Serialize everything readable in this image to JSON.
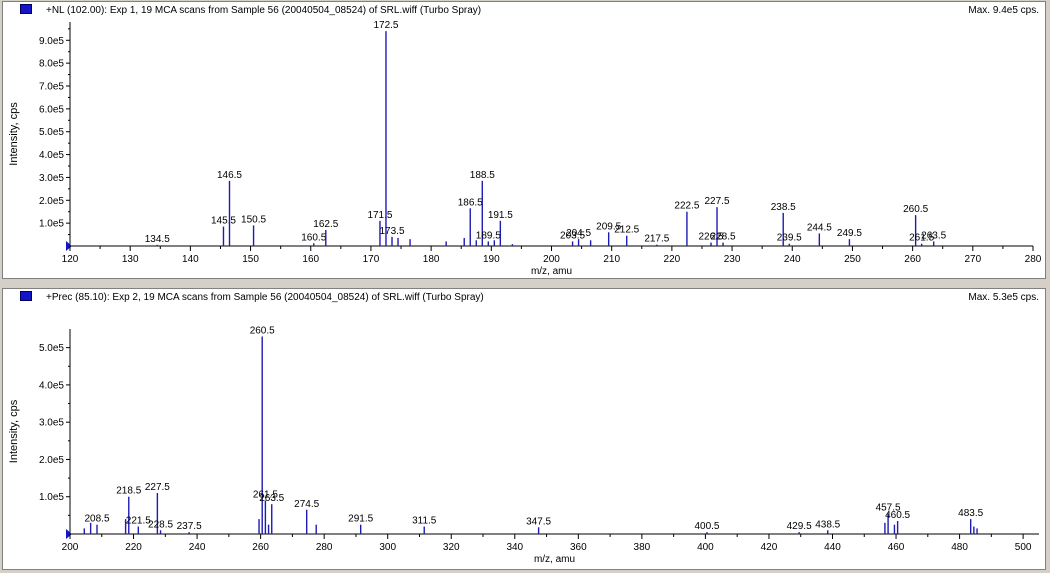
{
  "panels": [
    {
      "header": {
        "title": "+NL (102.00): Exp 1, 19 MCA scans from Sample 56 (20040504_08524) of SRL.wiff (Turbo Spray)",
        "max": "Max. 9.4e5 cps."
      }
    },
    {
      "header": {
        "title": "+Prec (85.10): Exp 2, 19 MCA scans from Sample 56 (20040504_08524) of SRL.wiff (Turbo Spray)",
        "max": "Max. 5.3e5 cps."
      }
    }
  ],
  "colors": {
    "peak": "#1c1cb4",
    "axis": "#000000",
    "panel_bg": "#ffffff",
    "marker": "#1414c8"
  },
  "chart_data": [
    {
      "type": "bar",
      "xlabel": "m/z, amu",
      "ylabel": "Intensity, cps",
      "xlim": [
        120,
        280
      ],
      "ylim": [
        0,
        980000
      ],
      "x_ticks": [
        120,
        130,
        140,
        150,
        160,
        170,
        180,
        190,
        200,
        210,
        220,
        230,
        240,
        250,
        260,
        270,
        280
      ],
      "y_ticks": [
        {
          "value": 100000,
          "label": "1.0e5"
        },
        {
          "value": 200000,
          "label": "2.0e5"
        },
        {
          "value": 300000,
          "label": "3.0e5"
        },
        {
          "value": 400000,
          "label": "4.0e5"
        },
        {
          "value": 500000,
          "label": "5.0e5"
        },
        {
          "value": 600000,
          "label": "6.0e5"
        },
        {
          "value": 700000,
          "label": "7.0e5"
        },
        {
          "value": 800000,
          "label": "8.0e5"
        },
        {
          "value": 900000,
          "label": "9.0e5"
        }
      ],
      "peaks": [
        {
          "x": 134.5,
          "y": 5000,
          "label": "134.5"
        },
        {
          "x": 145.5,
          "y": 85000,
          "label": "145.5"
        },
        {
          "x": 146.5,
          "y": 285000,
          "label": "146.5"
        },
        {
          "x": 150.5,
          "y": 90000,
          "label": "150.5"
        },
        {
          "x": 160.5,
          "y": 12000,
          "label": "160.5"
        },
        {
          "x": 162.5,
          "y": 70000,
          "label": "162.5"
        },
        {
          "x": 171.5,
          "y": 110000,
          "label": "171.5"
        },
        {
          "x": 172.5,
          "y": 940000,
          "label": "172.5"
        },
        {
          "x": 173.5,
          "y": 40000,
          "label": "173.5"
        },
        {
          "x": 174.5,
          "y": 35000
        },
        {
          "x": 176.5,
          "y": 30000
        },
        {
          "x": 182.5,
          "y": 20000
        },
        {
          "x": 185.5,
          "y": 35000
        },
        {
          "x": 186.5,
          "y": 165000,
          "label": "186.5"
        },
        {
          "x": 187.5,
          "y": 25000
        },
        {
          "x": 188.5,
          "y": 285000,
          "label": "188.5"
        },
        {
          "x": 189.5,
          "y": 20000,
          "label": "189.5"
        },
        {
          "x": 190.5,
          "y": 25000
        },
        {
          "x": 191.5,
          "y": 110000,
          "label": "191.5"
        },
        {
          "x": 193.5,
          "y": 8000
        },
        {
          "x": 203.5,
          "y": 20000,
          "label": "203.5"
        },
        {
          "x": 204.5,
          "y": 30000,
          "label": "204.5"
        },
        {
          "x": 206.5,
          "y": 25000
        },
        {
          "x": 209.5,
          "y": 60000,
          "label": "209.5"
        },
        {
          "x": 212.5,
          "y": 45000,
          "label": "212.5"
        },
        {
          "x": 217.5,
          "y": 6000,
          "label": "217.5"
        },
        {
          "x": 222.5,
          "y": 150000,
          "label": "222.5"
        },
        {
          "x": 226.5,
          "y": 15000,
          "label": "226.5"
        },
        {
          "x": 227.5,
          "y": 170000,
          "label": "227.5"
        },
        {
          "x": 228.5,
          "y": 15000,
          "label": "228.5"
        },
        {
          "x": 238.5,
          "y": 145000,
          "label": "238.5"
        },
        {
          "x": 239.5,
          "y": 10000,
          "label": "239.5"
        },
        {
          "x": 244.5,
          "y": 55000,
          "label": "244.5"
        },
        {
          "x": 249.5,
          "y": 30000,
          "label": "249.5"
        },
        {
          "x": 260.5,
          "y": 135000,
          "label": "260.5"
        },
        {
          "x": 261.5,
          "y": 10000,
          "label": "261.5"
        },
        {
          "x": 263.5,
          "y": 20000,
          "label": "263.5"
        }
      ]
    },
    {
      "type": "bar",
      "xlabel": "m/z, amu",
      "ylabel": "Intensity, cps",
      "xlim": [
        200,
        505
      ],
      "ylim": [
        0,
        550000
      ],
      "x_ticks": [
        200,
        220,
        240,
        260,
        280,
        300,
        320,
        340,
        360,
        380,
        400,
        420,
        440,
        460,
        480,
        500
      ],
      "y_ticks": [
        {
          "value": 100000,
          "label": "1.0e5"
        },
        {
          "value": 200000,
          "label": "2.0e5"
        },
        {
          "value": 300000,
          "label": "3.0e5"
        },
        {
          "value": 400000,
          "label": "4.0e5"
        },
        {
          "value": 500000,
          "label": "5.0e5"
        }
      ],
      "peaks": [
        {
          "x": 204.5,
          "y": 15000
        },
        {
          "x": 206.5,
          "y": 30000
        },
        {
          "x": 208.5,
          "y": 25000,
          "label": "208.5"
        },
        {
          "x": 217.5,
          "y": 40000
        },
        {
          "x": 218.5,
          "y": 100000,
          "label": "218.5"
        },
        {
          "x": 221.5,
          "y": 20000,
          "label": "221.5"
        },
        {
          "x": 227.5,
          "y": 110000,
          "label": "227.5"
        },
        {
          "x": 228.5,
          "y": 10000,
          "label": "228.5"
        },
        {
          "x": 237.5,
          "y": 5000,
          "label": "237.5"
        },
        {
          "x": 259.5,
          "y": 40000
        },
        {
          "x": 260.5,
          "y": 530000,
          "label": "260.5"
        },
        {
          "x": 261.5,
          "y": 90000,
          "label": "261.5"
        },
        {
          "x": 262.5,
          "y": 25000
        },
        {
          "x": 263.5,
          "y": 80000,
          "label": "263.5"
        },
        {
          "x": 274.5,
          "y": 65000,
          "label": "274.5"
        },
        {
          "x": 277.5,
          "y": 25000
        },
        {
          "x": 291.5,
          "y": 25000,
          "label": "291.5"
        },
        {
          "x": 311.5,
          "y": 20000,
          "label": "311.5"
        },
        {
          "x": 347.5,
          "y": 18000,
          "label": "347.5"
        },
        {
          "x": 400.5,
          "y": 5000,
          "label": "400.5"
        },
        {
          "x": 429.5,
          "y": 5000,
          "label": "429.5"
        },
        {
          "x": 438.5,
          "y": 10000,
          "label": "438.5"
        },
        {
          "x": 456.5,
          "y": 30000
        },
        {
          "x": 457.5,
          "y": 55000,
          "label": "457.5"
        },
        {
          "x": 459.5,
          "y": 25000
        },
        {
          "x": 460.5,
          "y": 35000,
          "label": "460.5"
        },
        {
          "x": 483.5,
          "y": 40000,
          "label": "483.5"
        },
        {
          "x": 484.5,
          "y": 20000
        },
        {
          "x": 485.5,
          "y": 15000
        }
      ]
    }
  ]
}
